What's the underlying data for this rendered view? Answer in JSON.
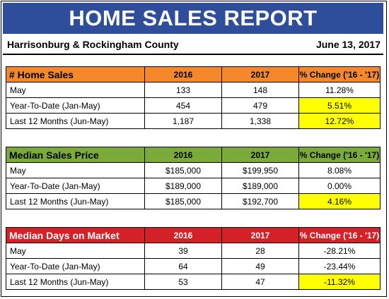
{
  "title": "HOME SALES REPORT",
  "region": "Harrisonburg & Rockingham County",
  "date": "June 13, 2017",
  "sections": [
    {
      "heading": "# Home Sales",
      "col_a": "2016",
      "col_b": "2017",
      "col_c": "% Change ('16 - '17)",
      "header_color": "#f5882a",
      "rows": [
        {
          "label": "May",
          "a": "133",
          "b": "148",
          "c": "11.28%",
          "highlight": false
        },
        {
          "label": "Year-To-Date (Jan-May)",
          "a": "454",
          "b": "479",
          "c": "5.51%",
          "highlight": true
        },
        {
          "label": "Last 12 Months (Jun-May)",
          "a": "1,187",
          "b": "1,338",
          "c": "12.72%",
          "highlight": true
        }
      ]
    },
    {
      "heading": "Median Sales Price",
      "col_a": "2016",
      "col_b": "2017",
      "col_c": "% Change ('16 - '17)",
      "header_color": "#7aab3a",
      "rows": [
        {
          "label": "May",
          "a": "$185,000",
          "b": "$199,950",
          "c": "8.08%",
          "highlight": false
        },
        {
          "label": "Year-To-Date (Jan-May)",
          "a": "$189,000",
          "b": "$189,000",
          "c": "0.00%",
          "highlight": false
        },
        {
          "label": "Last 12 Months (Jun-May)",
          "a": "$185,000",
          "b": "$192,700",
          "c": "4.16%",
          "highlight": true
        }
      ]
    },
    {
      "heading": "Median Days on Market",
      "col_a": "2016",
      "col_b": "2017",
      "col_c": "% Change ('16 - '17)",
      "header_color": "#d42027",
      "rows": [
        {
          "label": "May",
          "a": "39",
          "b": "28",
          "c": "-28.21%",
          "highlight": false
        },
        {
          "label": "Year-To-Date (Jan-May)",
          "a": "64",
          "b": "49",
          "c": "-23.44%",
          "highlight": false
        },
        {
          "label": "Last 12 Months (Jun-May)",
          "a": "53",
          "b": "47",
          "c": "-11.32%",
          "highlight": true
        }
      ]
    }
  ]
}
